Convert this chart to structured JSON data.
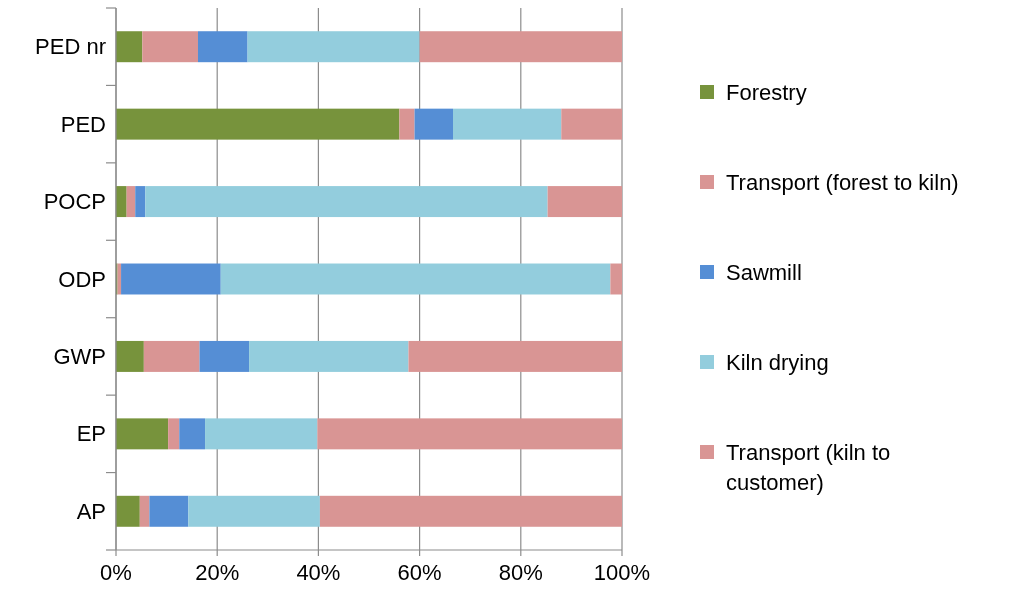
{
  "chart_data": {
    "type": "bar",
    "orientation": "horizontal",
    "stacked": true,
    "categories": [
      "PED nr",
      "PED",
      "POCP",
      "ODP",
      "GWP",
      "EP",
      "AP"
    ],
    "series": [
      {
        "name": "Forestry",
        "color": "#77933c",
        "values": [
          5.2,
          56,
          2.1,
          0.3,
          5.5,
          10.3,
          4.7
        ]
      },
      {
        "name": "Transport (forest to kiln)",
        "color": "#d99594",
        "values": [
          11,
          3,
          1.7,
          0.7,
          11,
          2.2,
          1.9
        ]
      },
      {
        "name": "Sawmill",
        "color": "#558ed5",
        "values": [
          9.8,
          7.6,
          2,
          19.7,
          9.8,
          5.1,
          7.7
        ]
      },
      {
        "name": "Kiln drying",
        "color": "#93cddd",
        "values": [
          34,
          21.4,
          79.5,
          77,
          31.5,
          22.2,
          26
        ]
      },
      {
        "name": "Transport (kiln to customer)",
        "color": "#d99594",
        "values": [
          40,
          12,
          14.7,
          2.3,
          42.2,
          60.2,
          59.7
        ]
      }
    ],
    "xlim": [
      0,
      100
    ],
    "xticks": [
      {
        "value": 0,
        "label": "0%"
      },
      {
        "value": 20,
        "label": "20%"
      },
      {
        "value": 40,
        "label": "40%"
      },
      {
        "value": 60,
        "label": "60%"
      },
      {
        "value": 80,
        "label": "80%"
      },
      {
        "value": 100,
        "label": "100%"
      }
    ],
    "grid": "x",
    "legend": "right"
  }
}
